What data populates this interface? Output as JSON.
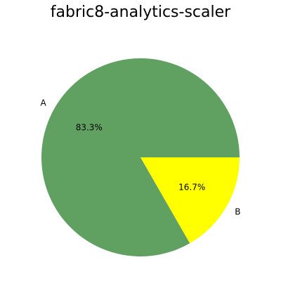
{
  "chart_data": {
    "type": "pie",
    "title": "fabric8-analytics-scaler",
    "labels": [
      "A",
      "B"
    ],
    "values": [
      83.3,
      16.7
    ],
    "percent_labels": [
      "83.3%",
      "16.7%"
    ],
    "colors": [
      "#60a060",
      "#ffff00"
    ],
    "legend": "none"
  }
}
